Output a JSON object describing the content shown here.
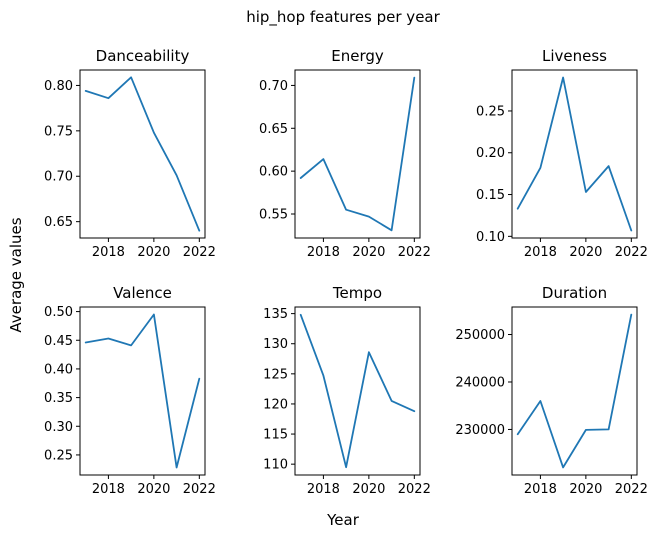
{
  "figure": {
    "suptitle": "hip_hop features per year",
    "xlabel": "Year",
    "ylabel": "Average values",
    "line_color": "#1f77b4"
  },
  "chart_data": [
    {
      "type": "line",
      "title": "Danceability",
      "x": [
        2017,
        2018,
        2019,
        2020,
        2021,
        2022
      ],
      "y": [
        0.794,
        0.786,
        0.809,
        0.748,
        0.701,
        0.64
      ],
      "xlim": [
        2016.75,
        2022.25
      ],
      "ylim": [
        0.632,
        0.817
      ],
      "xticks": [
        2018,
        2020,
        2022
      ],
      "xtick_labels": [
        "2018",
        "2020",
        "2022"
      ],
      "yticks": [
        0.65,
        0.7,
        0.75,
        0.8
      ],
      "ytick_labels": [
        "0.65",
        "0.70",
        "0.75",
        "0.80"
      ]
    },
    {
      "type": "line",
      "title": "Energy",
      "x": [
        2017,
        2018,
        2019,
        2020,
        2021,
        2022
      ],
      "y": [
        0.592,
        0.614,
        0.555,
        0.547,
        0.531,
        0.709
      ],
      "xlim": [
        2016.75,
        2022.25
      ],
      "ylim": [
        0.522,
        0.718
      ],
      "xticks": [
        2018,
        2020,
        2022
      ],
      "xtick_labels": [
        "2018",
        "2020",
        "2022"
      ],
      "yticks": [
        0.55,
        0.6,
        0.65,
        0.7
      ],
      "ytick_labels": [
        "0.55",
        "0.60",
        "0.65",
        "0.70"
      ]
    },
    {
      "type": "line",
      "title": "Liveness",
      "x": [
        2017,
        2018,
        2019,
        2020,
        2021,
        2022
      ],
      "y": [
        0.133,
        0.182,
        0.29,
        0.153,
        0.184,
        0.107
      ],
      "xlim": [
        2016.75,
        2022.25
      ],
      "ylim": [
        0.098,
        0.299
      ],
      "xticks": [
        2018,
        2020,
        2022
      ],
      "xtick_labels": [
        "2018",
        "2020",
        "2022"
      ],
      "yticks": [
        0.1,
        0.15,
        0.2,
        0.25
      ],
      "ytick_labels": [
        "0.10",
        "0.15",
        "0.20",
        "0.25"
      ]
    },
    {
      "type": "line",
      "title": "Valence",
      "x": [
        2017,
        2018,
        2019,
        2020,
        2021,
        2022
      ],
      "y": [
        0.446,
        0.453,
        0.441,
        0.495,
        0.228,
        0.383
      ],
      "xlim": [
        2016.75,
        2022.25
      ],
      "ylim": [
        0.215,
        0.508
      ],
      "xticks": [
        2018,
        2020,
        2022
      ],
      "xtick_labels": [
        "2018",
        "2020",
        "2022"
      ],
      "yticks": [
        0.25,
        0.3,
        0.35,
        0.4,
        0.45,
        0.5
      ],
      "ytick_labels": [
        "0.25",
        "0.30",
        "0.35",
        "0.40",
        "0.45",
        "0.50"
      ]
    },
    {
      "type": "line",
      "title": "Tempo",
      "x": [
        2017,
        2018,
        2019,
        2020,
        2021,
        2022
      ],
      "y": [
        134.8,
        124.7,
        109.5,
        128.6,
        120.5,
        118.8
      ],
      "xlim": [
        2016.75,
        2022.25
      ],
      "ylim": [
        108.2,
        136.1
      ],
      "xticks": [
        2018,
        2020,
        2022
      ],
      "xtick_labels": [
        "2018",
        "2020",
        "2022"
      ],
      "yticks": [
        110,
        115,
        120,
        125,
        130,
        135
      ],
      "ytick_labels": [
        "110",
        "115",
        "120",
        "125",
        "130",
        "135"
      ]
    },
    {
      "type": "line",
      "title": "Duration",
      "x": [
        2017,
        2018,
        2019,
        2020,
        2021,
        2022
      ],
      "y": [
        229000,
        236000,
        222000,
        229900,
        230000,
        254200
      ],
      "xlim": [
        2016.75,
        2022.25
      ],
      "ylim": [
        220400,
        255800
      ],
      "xticks": [
        2018,
        2020,
        2022
      ],
      "xtick_labels": [
        "2018",
        "2020",
        "2022"
      ],
      "yticks": [
        230000,
        240000,
        250000
      ],
      "ytick_labels": [
        "230000",
        "240000",
        "250000"
      ]
    }
  ]
}
